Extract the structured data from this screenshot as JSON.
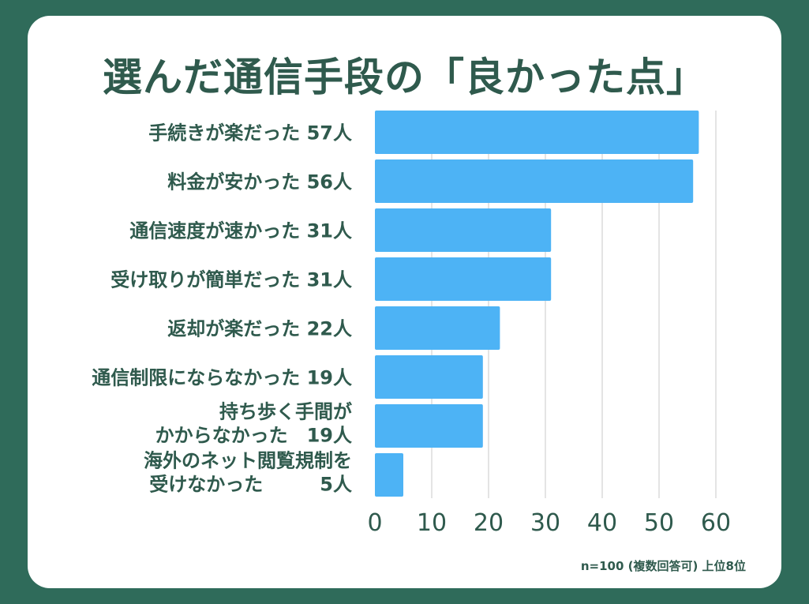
{
  "colors": {
    "background": "#2f6b5a",
    "card": "#ffffff",
    "bar": "#4db3f5",
    "text": "#2f5a4d",
    "grid": "#dcdcdc"
  },
  "chart_data": {
    "type": "bar",
    "orientation": "horizontal",
    "title": "選んだ通信手段の「良かった点」",
    "categories": [
      {
        "lines": [
          "手続きが楽だった 57人"
        ],
        "value": 57
      },
      {
        "lines": [
          "料金が安かった 56人"
        ],
        "value": 56
      },
      {
        "lines": [
          "通信速度が速かった 31人"
        ],
        "value": 31
      },
      {
        "lines": [
          "受け取りが簡単だった 31人"
        ],
        "value": 31
      },
      {
        "lines": [
          "返却が楽だった 22人"
        ],
        "value": 22
      },
      {
        "lines": [
          "通信制限にならなかった 19人"
        ],
        "value": 19
      },
      {
        "lines": [
          "持ち歩く手間が",
          "かからなかった　19人"
        ],
        "value": 19
      },
      {
        "lines": [
          "海外のネット閲覧規制を",
          "受けなかった　　　5人"
        ],
        "value": 5
      }
    ],
    "xlim": [
      0,
      60
    ],
    "xticks": [
      "0",
      "10",
      "20",
      "30",
      "40",
      "50",
      "60"
    ],
    "grid": true,
    "note": "n=100 (複数回答可) 上位8位"
  }
}
